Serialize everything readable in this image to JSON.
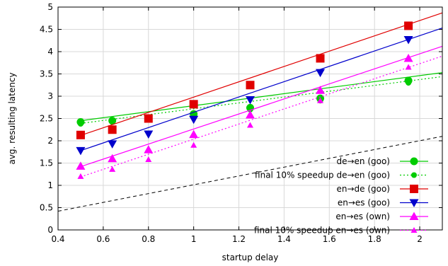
{
  "chart_data": {
    "type": "line",
    "title": "",
    "xlabel": "startup delay",
    "ylabel": "avg. resulting latency",
    "xlim": [
      0.4,
      2.1
    ],
    "ylim": [
      0,
      5
    ],
    "x_ticks": [
      "0.4",
      "0.6",
      "0.8",
      "1",
      "1.2",
      "1.4",
      "1.6",
      "1.8",
      "2"
    ],
    "y_ticks": [
      "0",
      "0.5",
      "1",
      "1.5",
      "2",
      "2.5",
      "3",
      "3.5",
      "4",
      "4.5",
      "5"
    ],
    "grid": true,
    "legend_position": "bottom-right",
    "reference_line": {
      "style": "dashed",
      "color": "#000000",
      "x": [
        0.4,
        2.1
      ],
      "y": [
        0.42,
        2.1
      ]
    },
    "series": [
      {
        "name": "de→en (goo)",
        "color": "#00cc00",
        "line": "solid",
        "marker": "circle",
        "x": [
          0.5,
          0.64,
          0.8,
          1.0,
          1.25,
          1.56,
          1.95
        ],
        "y": [
          2.42,
          2.45,
          2.5,
          2.6,
          2.74,
          2.95,
          3.35
        ],
        "fit": [
          [
            0.5,
            2.45
          ],
          [
            2.1,
            3.53
          ]
        ]
      },
      {
        "name": "final 10% speedup de→en (goo)",
        "color": "#00cc00",
        "line": "dotted",
        "marker": "small-circle",
        "x": [
          0.5,
          0.64,
          0.8,
          1.0,
          1.25,
          1.56,
          1.95
        ],
        "y": [
          2.38,
          2.42,
          2.48,
          2.56,
          2.7,
          2.9,
          3.3
        ],
        "fit": [
          [
            0.5,
            2.39
          ],
          [
            2.1,
            3.44
          ]
        ]
      },
      {
        "name": "en→de (goo)",
        "color": "#e00000",
        "line": "solid",
        "marker": "square",
        "x": [
          0.5,
          0.64,
          0.8,
          1.0,
          1.25,
          1.56,
          1.95
        ],
        "y": [
          2.13,
          2.25,
          2.5,
          2.82,
          3.25,
          3.85,
          4.58
        ],
        "fit": [
          [
            0.5,
            2.12
          ],
          [
            2.1,
            4.87
          ]
        ]
      },
      {
        "name": "en→es (goo)",
        "color": "#0000cc",
        "line": "solid",
        "marker": "triangle-down",
        "x": [
          0.5,
          0.64,
          0.8,
          1.0,
          1.25,
          1.56,
          1.95
        ],
        "y": [
          1.78,
          1.93,
          2.15,
          2.48,
          2.92,
          3.53,
          4.27
        ],
        "fit": [
          [
            0.5,
            1.78
          ],
          [
            2.1,
            4.53
          ]
        ]
      },
      {
        "name": "en→es (own)",
        "color": "#ff00ff",
        "line": "solid",
        "marker": "triangle-up",
        "x": [
          0.5,
          0.64,
          0.8,
          1.0,
          1.25,
          1.56,
          1.95
        ],
        "y": [
          1.43,
          1.6,
          1.8,
          2.14,
          2.58,
          3.13,
          3.85
        ],
        "fit": [
          [
            0.5,
            1.42
          ],
          [
            2.1,
            4.12
          ]
        ]
      },
      {
        "name": "final 10% speedup en→es (own)",
        "color": "#ff00ff",
        "line": "dotted",
        "marker": "small-triangle-up",
        "x": [
          0.5,
          0.64,
          0.8,
          1.0,
          1.25,
          1.56,
          1.95
        ],
        "y": [
          1.2,
          1.36,
          1.58,
          1.9,
          2.35,
          2.9,
          3.65
        ],
        "fit": [
          [
            0.5,
            1.19
          ],
          [
            2.1,
            3.9
          ]
        ]
      }
    ]
  }
}
